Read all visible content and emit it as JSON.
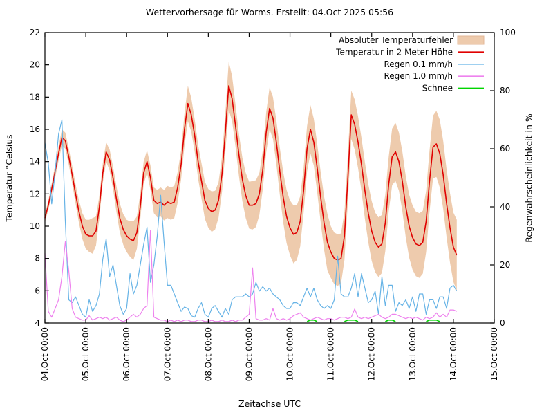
{
  "chart_data": {
    "type": "line",
    "title": "Wettervorhersage für Worms. Erstellt: 04.Oct 2025 05:56",
    "xlabel": "Zeitachse UTC",
    "ylabel_left": "Temperatur °Celsius",
    "ylabel_right": "Regenwahrscheinlichkeit in %",
    "grid": false,
    "legend_position": "upper right",
    "x_tick_labels": [
      "04.Oct 00:00",
      "05.Oct 00:00",
      "06.Oct 00:00",
      "07.Oct 00:00",
      "08.Oct 00:00",
      "09.Oct 00:00",
      "10.Oct 00:00",
      "11.Oct 00:00",
      "12.Oct 00:00",
      "13.Oct 00:00",
      "14.Oct 00:00",
      "15.Oct 00:00"
    ],
    "y_left_ticks": [
      4,
      6,
      8,
      10,
      12,
      14,
      16,
      18,
      20,
      22
    ],
    "y_left_range": [
      4,
      22
    ],
    "y_right_ticks": [
      0,
      20,
      40,
      60,
      80,
      100
    ],
    "y_right_range": [
      0,
      100
    ],
    "sample_start": "04.Oct 00:00",
    "sample_step_hours": 2,
    "series": [
      {
        "name": "Absoluter Temperaturfehler",
        "kind": "band",
        "axis": "left",
        "color": "#eecbad",
        "border_color": "#e3b797",
        "half_width": [
          0.25,
          0.3,
          0.35,
          0.4,
          0.45,
          0.5,
          0.5,
          0.5,
          0.55,
          0.6,
          0.7,
          0.8,
          0.9,
          1.0,
          1.1,
          0.9,
          0.7,
          0.6,
          0.6,
          0.65,
          0.7,
          0.8,
          0.9,
          0.95,
          1.0,
          1.1,
          1.2,
          1.0,
          0.8,
          0.7,
          0.7,
          0.75,
          0.8,
          0.85,
          0.9,
          0.95,
          1.0,
          1.0,
          1.0,
          0.95,
          0.9,
          1.0,
          1.1,
          1.05,
          1.0,
          1.05,
          1.1,
          1.15,
          1.2,
          1.25,
          1.2,
          1.1,
          1.1,
          1.2,
          1.5,
          1.4,
          1.3,
          1.3,
          1.35,
          1.4,
          1.45,
          1.5,
          1.45,
          1.3,
          1.2,
          1.25,
          1.3,
          1.3,
          1.35,
          1.45,
          1.55,
          1.65,
          1.7,
          1.8,
          1.7,
          1.55,
          1.4,
          1.4,
          1.5,
          1.45,
          1.5,
          1.55,
          1.65,
          1.75,
          1.6,
          1.6,
          1.6,
          1.55,
          1.5,
          1.45,
          1.5,
          1.55,
          1.6,
          1.65,
          1.75,
          1.8,
          1.85,
          1.85,
          1.85,
          1.8,
          1.75,
          1.7,
          1.75,
          1.8,
          1.8,
          1.85,
          1.9,
          1.95,
          2.0,
          2.0,
          2.0,
          1.95,
          1.9,
          1.9,
          1.95,
          2.05,
          2.1,
          2.1,
          2.1,
          2.15,
          2.15,
          2.2
        ]
      },
      {
        "name": "Temperatur in 2 Meter Höhe",
        "kind": "line",
        "axis": "left",
        "color": "#e00000",
        "width": 1.6,
        "values": [
          10.5,
          11.3,
          12.3,
          13.4,
          14.5,
          15.5,
          15.3,
          14.3,
          13.2,
          12.0,
          10.9,
          10.0,
          9.5,
          9.4,
          9.4,
          9.7,
          11.2,
          13.3,
          14.6,
          14.1,
          13.0,
          11.7,
          10.5,
          9.8,
          9.4,
          9.2,
          9.1,
          9.6,
          11.2,
          13.3,
          14.0,
          13.0,
          11.6,
          11.4,
          11.5,
          11.3,
          11.5,
          11.4,
          11.5,
          12.4,
          13.8,
          16.0,
          17.6,
          16.9,
          15.6,
          14.0,
          12.8,
          11.6,
          11.1,
          10.9,
          11.0,
          11.6,
          13.2,
          15.8,
          18.7,
          17.9,
          16.2,
          14.4,
          12.9,
          11.9,
          11.3,
          11.3,
          11.4,
          12.0,
          13.5,
          15.8,
          17.3,
          16.7,
          15.2,
          13.4,
          11.8,
          10.6,
          9.9,
          9.5,
          9.6,
          10.3,
          12.2,
          14.8,
          16.0,
          15.2,
          13.6,
          11.8,
          10.2,
          9.0,
          8.4,
          8.0,
          7.9,
          8.0,
          9.4,
          13.0,
          16.9,
          16.3,
          15.2,
          13.8,
          12.2,
          10.8,
          9.7,
          9.0,
          8.7,
          8.9,
          10.2,
          12.6,
          14.3,
          14.6,
          14.0,
          12.8,
          11.2,
          10.0,
          9.3,
          8.9,
          8.8,
          9.0,
          10.3,
          12.8,
          14.9,
          15.1,
          14.5,
          13.2,
          11.4,
          9.9,
          8.7,
          8.2
        ]
      },
      {
        "name": "Regen 0.1 mm/h",
        "kind": "line",
        "axis": "right",
        "color": "#66b3e6",
        "width": 1.2,
        "values": [
          62,
          55,
          41,
          52,
          65,
          70,
          35,
          8,
          7,
          9,
          6,
          3,
          2,
          8,
          4,
          6,
          10,
          22,
          29,
          16,
          20,
          13,
          6,
          3,
          5,
          17,
          10,
          13,
          20,
          27,
          33,
          14,
          20,
          30,
          44,
          28,
          13,
          13,
          10,
          7,
          4,
          5.5,
          5,
          2.5,
          2,
          5,
          7,
          3,
          2,
          5,
          6,
          4,
          2,
          5,
          3,
          8,
          9,
          9,
          9,
          10,
          9,
          10,
          14,
          11,
          12.5,
          11,
          12,
          10,
          9,
          8,
          6,
          5,
          5,
          7,
          7,
          6,
          9,
          12,
          9,
          12,
          8,
          6,
          5,
          6,
          5,
          8,
          23,
          10,
          9,
          9,
          12,
          17,
          9,
          17,
          12,
          7,
          8,
          11,
          3,
          16,
          6,
          13,
          13,
          4,
          7,
          6,
          8,
          5,
          9,
          4,
          10,
          10,
          3,
          8,
          8,
          5,
          9,
          9,
          5,
          12,
          13,
          11
        ]
      },
      {
        "name": "Regen 1.0 mm/h",
        "kind": "line",
        "axis": "right",
        "color": "#ee82ee",
        "width": 1.2,
        "values": [
          24,
          4,
          2,
          5,
          8,
          16,
          28,
          18,
          5,
          2,
          1.5,
          1,
          1,
          2.5,
          1,
          1.5,
          2,
          1.5,
          2,
          1,
          1.5,
          2,
          1,
          0.5,
          1,
          2,
          3,
          2,
          3,
          5,
          6,
          32,
          2,
          1.5,
          1,
          1,
          0.5,
          1,
          0.5,
          1,
          0.5,
          1,
          1,
          0.5,
          0.5,
          1,
          1,
          0.5,
          0.5,
          1,
          0.5,
          0.5,
          1,
          0.5,
          0.5,
          1,
          0.5,
          1,
          1,
          2,
          3,
          19,
          1.5,
          1,
          1,
          1.5,
          1,
          5,
          1.5,
          1,
          1.5,
          1,
          1.5,
          2.5,
          3,
          3.5,
          2,
          1.5,
          1,
          1.5,
          2,
          1.5,
          1,
          1.5,
          1.5,
          1,
          1.5,
          2,
          2,
          1.5,
          2,
          4.8,
          2,
          1.5,
          2,
          1.5,
          2,
          2.5,
          3,
          2,
          1.5,
          2,
          3,
          3,
          2.5,
          2,
          1.5,
          2,
          1.5,
          2,
          1.5,
          1,
          2,
          1.5,
          2,
          3.5,
          2,
          3,
          2,
          4.5,
          4.5,
          4
        ]
      },
      {
        "name": "Schnee",
        "kind": "segments",
        "axis": "right",
        "color": "#00d400",
        "width": 1.6,
        "segments": [
          {
            "start_hour": 154,
            "values": [
              0.5,
              1,
              1,
              0.5
            ]
          },
          {
            "start_hour": 176,
            "values": [
              0.5,
              1,
              1,
              1,
              0.5
            ]
          },
          {
            "start_hour": 200,
            "values": [
              0.5,
              1,
              1,
              0.5
            ]
          },
          {
            "start_hour": 224,
            "values": [
              0.5,
              1,
              1,
              1,
              0.5
            ]
          }
        ]
      }
    ]
  }
}
